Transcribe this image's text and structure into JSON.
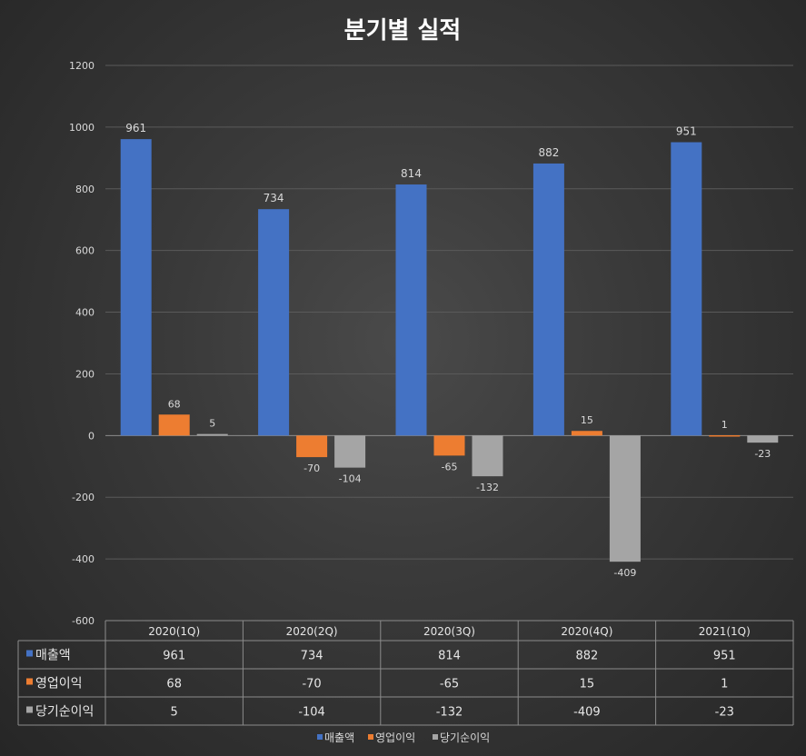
{
  "chart_data": {
    "type": "bar",
    "title": "분기별 실적",
    "categories": [
      "2020(1Q)",
      "2020(2Q)",
      "2020(3Q)",
      "2020(4Q)",
      "2021(1Q)"
    ],
    "series": [
      {
        "name": "매출액",
        "color": "#4472c4",
        "values": [
          961,
          734,
          814,
          882,
          951
        ]
      },
      {
        "name": "영업이익",
        "color": "#ed7d31",
        "values": [
          68,
          -70,
          -65,
          15,
          1
        ]
      },
      {
        "name": "당기순이익",
        "color": "#a5a5a5",
        "values": [
          5,
          -104,
          -132,
          -409,
          -23
        ]
      }
    ],
    "ylim": [
      -600,
      1200
    ],
    "yticks": [
      1200,
      1000,
      800,
      600,
      400,
      200,
      0,
      -200,
      -400,
      -600
    ],
    "grid": true,
    "data_table": true,
    "legend_position": "bottom"
  }
}
